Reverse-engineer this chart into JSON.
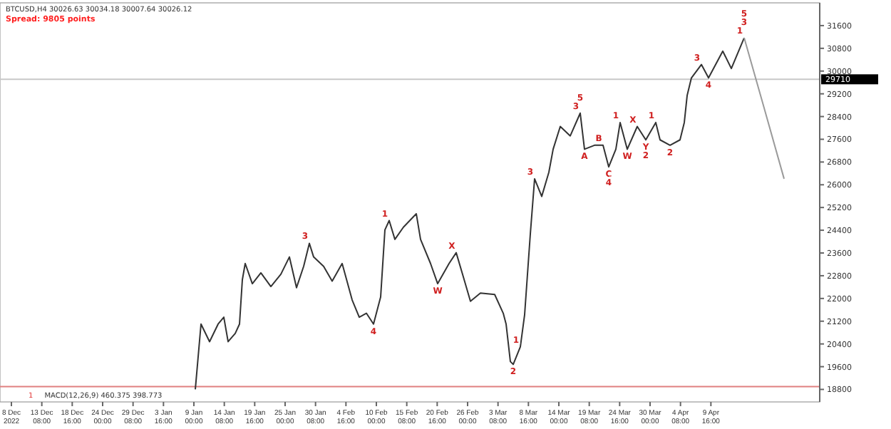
{
  "chart_data": {
    "type": "line",
    "title": "BTCUSD,H4 30026.63 30034.18 30007.64 30026.12",
    "subtitle": "Spread: 9805 points",
    "xlim": [
      "2022-12-06T00:00",
      "2023-04-28T18:00"
    ],
    "ylim": [
      18360,
      32400
    ],
    "xticks": [
      {
        "value": "2022-12-08T00:00",
        "label": "8 Dec 2022"
      },
      {
        "value": "2022-12-13T08:00",
        "label": "13 Dec 08:00"
      },
      {
        "value": "2022-12-18T16:00",
        "label": "18 Dec 16:00"
      },
      {
        "value": "2022-12-24T00:00",
        "label": "24 Dec 00:00"
      },
      {
        "value": "2022-12-29T08:00",
        "label": "29 Dec 08:00"
      },
      {
        "value": "2023-01-03T16:00",
        "label": "3 Jan 16:00"
      },
      {
        "value": "2023-01-09T00:00",
        "label": "9 Jan 00:00"
      },
      {
        "value": "2023-01-14T08:00",
        "label": "14 Jan 08:00"
      },
      {
        "value": "2023-01-19T16:00",
        "label": "19 Jan 16:00"
      },
      {
        "value": "2023-01-25T00:00",
        "label": "25 Jan 00:00"
      },
      {
        "value": "2023-01-30T08:00",
        "label": "30 Jan 08:00"
      },
      {
        "value": "2023-02-04T16:00",
        "label": "4 Feb 16:00"
      },
      {
        "value": "2023-02-10T00:00",
        "label": "10 Feb 00:00"
      },
      {
        "value": "2023-02-15T08:00",
        "label": "15 Feb 08:00"
      },
      {
        "value": "2023-02-20T16:00",
        "label": "20 Feb 16:00"
      },
      {
        "value": "2023-02-26T00:00",
        "label": "26 Feb 00:00"
      },
      {
        "value": "2023-03-03T08:00",
        "label": "3 Mar 08:00"
      },
      {
        "value": "2023-03-08T16:00",
        "label": "8 Mar 16:00"
      },
      {
        "value": "2023-03-14T00:00",
        "label": "14 Mar 00:00"
      },
      {
        "value": "2023-03-19T08:00",
        "label": "19 Mar 08:00"
      },
      {
        "value": "2023-03-24T16:00",
        "label": "24 Mar 16:00"
      },
      {
        "value": "2023-03-30T00:00",
        "label": "30 Mar 00:00"
      },
      {
        "value": "2023-04-04T08:00",
        "label": "4 Apr 08:00"
      },
      {
        "value": "2023-04-09T16:00",
        "label": "9 Apr 16:00"
      }
    ],
    "yticks": [
      18800,
      19600,
      20400,
      21200,
      22000,
      22800,
      23600,
      24400,
      25200,
      26000,
      26800,
      27600,
      28400,
      29200,
      30000,
      30800,
      31600
    ],
    "grid": false,
    "marker": "none",
    "line_style": "solid",
    "series": [
      {
        "color": "#333333",
        "x": [
          "2023-01-09T06:00",
          "2023-01-10T06:00",
          "2023-01-11T18:00",
          "2023-01-13T06:00",
          "2023-01-14T06:00",
          "2023-01-15T00:00",
          "2023-01-16T06:00",
          "2023-01-17T00:00",
          "2023-01-17T12:00",
          "2023-01-18T00:00",
          "2023-01-19T06:00",
          "2023-01-20T18:00",
          "2023-01-22T12:00",
          "2023-01-24T06:00",
          "2023-01-25T18:00",
          "2023-01-27T00:00",
          "2023-01-28T06:00",
          "2023-01-29T06:00",
          "2023-01-30T00:00",
          "2023-01-31T18:00",
          "2023-02-02T06:00",
          "2023-02-04T00:00",
          "2023-02-05T18:00",
          "2023-02-07T00:00",
          "2023-02-08T06:00",
          "2023-02-09T12:00",
          "2023-02-10T18:00",
          "2023-02-11T12:00",
          "2023-02-12T06:00",
          "2023-02-13T06:00",
          "2023-02-14T18:00",
          "2023-02-17T00:00",
          "2023-02-17T18:00",
          "2023-02-19T12:00",
          "2023-02-20T18:00",
          "2023-02-22T18:00",
          "2023-02-24T00:00",
          "2023-02-25T06:00",
          "2023-02-26T12:00",
          "2023-02-28T06:00",
          "2023-03-02T18:00",
          "2023-03-04T06:00",
          "2023-03-04T18:00",
          "2023-03-05T12:00",
          "2023-03-06T00:00",
          "2023-03-07T06:00",
          "2023-03-08T00:00",
          "2023-03-09T00:00",
          "2023-03-09T18:00",
          "2023-03-11T00:00",
          "2023-03-12T06:00",
          "2023-03-13T00:00",
          "2023-03-14T06:00",
          "2023-03-16T00:00",
          "2023-03-17T18:00",
          "2023-03-18T12:00",
          "2023-03-20T06:00",
          "2023-03-21T18:00",
          "2023-03-22T18:00",
          "2023-03-24T00:00",
          "2023-03-24T18:00",
          "2023-03-26T00:00",
          "2023-03-27T18:00",
          "2023-03-29T06:00",
          "2023-03-31T00:00",
          "2023-03-31T18:00",
          "2023-04-02T12:00",
          "2023-04-04T06:00",
          "2023-04-05T00:00",
          "2023-04-05T12:00",
          "2023-04-06T06:00",
          "2023-04-08T00:00",
          "2023-04-09T06:00",
          "2023-04-11T18:00",
          "2023-04-13T06:00",
          "2023-04-15T12:00"
        ],
        "values": [
          18800,
          21100,
          20480,
          21100,
          21340,
          20480,
          20770,
          21100,
          22660,
          23230,
          22520,
          22900,
          22420,
          22850,
          23460,
          22380,
          23130,
          23940,
          23460,
          23130,
          22610,
          23230,
          21950,
          21340,
          21480,
          21100,
          22050,
          24410,
          24740,
          24080,
          24510,
          24980,
          24080,
          23230,
          22520,
          23230,
          23610,
          22760,
          21900,
          22190,
          22140,
          21480,
          21100,
          19780,
          19680,
          20300,
          21430,
          24270,
          26210,
          25590,
          26440,
          27250,
          28050,
          27720,
          28520,
          27250,
          27390,
          27390,
          26630,
          27250,
          28190,
          27250,
          28050,
          27580,
          28190,
          27580,
          27390,
          27580,
          28190,
          29140,
          29760,
          30230,
          29760,
          30700,
          30090,
          31170
        ]
      },
      {
        "color": "#9a9a9a",
        "x": [
          "2023-04-15T12:00",
          "2023-04-19T00:00",
          "2023-04-22T12:00"
        ],
        "values": [
          31170,
          28700,
          26210
        ]
      }
    ],
    "ref_lines": [
      {
        "axis": "y",
        "value": 29710,
        "label": "29710",
        "color": "#c8c8c8"
      },
      {
        "axis": "y",
        "value": 18900,
        "color": "#e08080"
      }
    ],
    "annotations": [
      {
        "text": "1",
        "x": "2023-02-12T06:00",
        "y": 24740
      },
      {
        "text": "3",
        "x": "2023-01-29T06:00",
        "y": 23940
      },
      {
        "text": "4",
        "x": "2023-02-09T12:00",
        "y": 21100
      },
      {
        "text": "W",
        "x": "2023-02-20T18:00",
        "y": 22520
      },
      {
        "text": "X",
        "x": "2023-02-24T00:00",
        "y": 23610
      },
      {
        "text": "2",
        "x": "2023-03-06T00:00",
        "y": 19680
      },
      {
        "text": "1",
        "x": "2023-03-07T06:00",
        "y": 20300
      },
      {
        "text": "3",
        "x": "2023-03-09T18:00",
        "y": 26210
      },
      {
        "text": "3",
        "x": "2023-03-17T18:00",
        "y": 28520
      },
      {
        "text": "5",
        "x": "2023-03-17T18:00",
        "y": 28520
      },
      {
        "text": "A",
        "x": "2023-03-18T12:00",
        "y": 27250
      },
      {
        "text": "B",
        "x": "2023-03-21T18:00",
        "y": 27390
      },
      {
        "text": "C",
        "x": "2023-03-22T18:00",
        "y": 26630
      },
      {
        "text": "4",
        "x": "2023-03-22T18:00",
        "y": 26630
      },
      {
        "text": "1",
        "x": "2023-03-24T18:00",
        "y": 28190
      },
      {
        "text": "W",
        "x": "2023-03-26T00:00",
        "y": 27250
      },
      {
        "text": "X",
        "x": "2023-03-27T18:00",
        "y": 28050
      },
      {
        "text": "Y",
        "x": "2023-03-29T06:00",
        "y": 27580
      },
      {
        "text": "2",
        "x": "2023-03-29T06:00",
        "y": 27580
      },
      {
        "text": "1",
        "x": "2023-03-31T00:00",
        "y": 28190
      },
      {
        "text": "2",
        "x": "2023-04-02T12:00",
        "y": 27390
      },
      {
        "text": "3",
        "x": "2023-04-08T00:00",
        "y": 30230
      },
      {
        "text": "4",
        "x": "2023-04-09T06:00",
        "y": 29760
      },
      {
        "text": "1",
        "x": "2023-04-15T12:00",
        "y": 31170
      },
      {
        "text": "3",
        "x": "2023-04-15T12:00",
        "y": 31170
      },
      {
        "text": "5",
        "x": "2023-04-15T12:00",
        "y": 31170
      },
      "1",
      "MACD(12,26,9) 460.375 398.773"
    ]
  }
}
